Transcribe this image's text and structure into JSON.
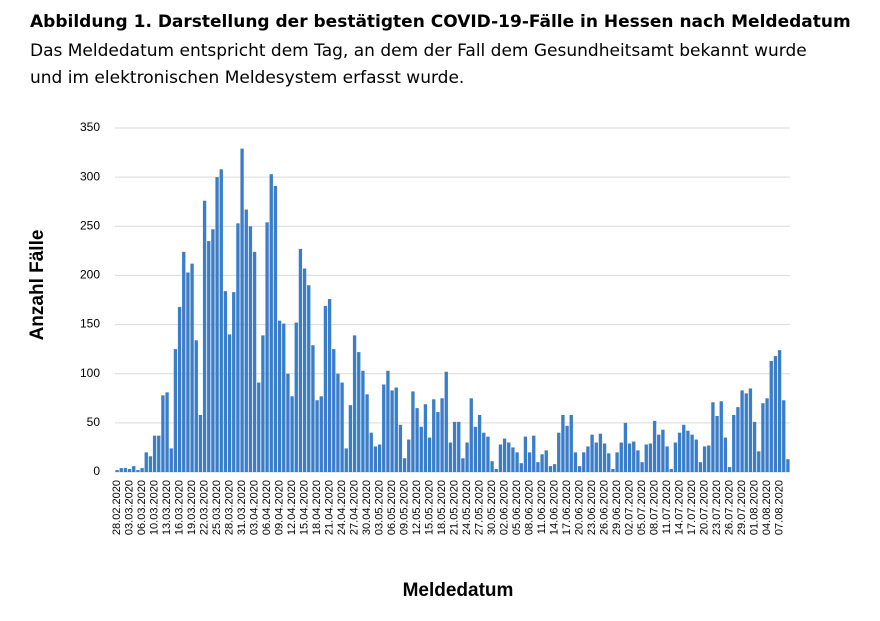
{
  "chart_data": {
    "type": "bar",
    "title": "Abbildung 1. Darstellung der bestätigten COVID-19-Fälle in Hessen nach Meldedatum",
    "subtitle": [
      "Das Meldedatum entspricht dem Tag, an dem der Fall dem Gesundheitsamt bekannt wurde",
      "und im elektronischen Meldesystem erfasst wurde."
    ],
    "y_label": "Anzahl Fälle",
    "x_label": "Meldedatum",
    "color": "#3a7dc9",
    "grid": true,
    "ylim": [
      0,
      350
    ],
    "yticks": [
      0,
      50,
      100,
      150,
      200,
      250,
      300,
      350
    ],
    "categories": [
      "28.02.2020",
      null,
      null,
      "03.03.2020",
      null,
      null,
      "06.03.2020",
      null,
      null,
      "10.03.2020",
      null,
      null,
      "13.03.2020",
      null,
      null,
      "16.03.2020",
      null,
      null,
      "19.03.2020",
      null,
      null,
      "22.03.2020",
      null,
      null,
      "25.03.2020",
      null,
      null,
      "28.03.2020",
      null,
      null,
      "31.03.2020",
      null,
      null,
      "03.04.2020",
      null,
      null,
      "06.04.2020",
      null,
      null,
      "09.04.2020",
      null,
      null,
      "12.04.2020",
      null,
      null,
      "15.04.2020",
      null,
      null,
      "18.04.2020",
      null,
      null,
      "21.04.2020",
      null,
      null,
      "24.04.2020",
      null,
      null,
      "27.04.2020",
      null,
      null,
      "30.04.2020",
      null,
      null,
      "03.05.2020",
      null,
      null,
      "06.05.2020",
      null,
      null,
      "09.05.2020",
      null,
      null,
      "12.05.2020",
      null,
      null,
      "15.05.2020",
      null,
      null,
      "18.05.2020",
      null,
      null,
      "21.05.2020",
      null,
      null,
      "24.05.2020",
      null,
      null,
      "27.05.2020",
      null,
      null,
      "30.05.2020",
      null,
      null,
      "02.06.2020",
      null,
      null,
      "05.06.2020",
      null,
      null,
      "08.06.2020",
      null,
      null,
      "11.06.2020",
      null,
      null,
      "14.06.2020",
      null,
      null,
      "17.06.2020",
      null,
      null,
      "20.06.2020",
      null,
      null,
      "23.06.2020",
      null,
      null,
      "26.06.2020",
      null,
      null,
      "29.06.2020",
      null,
      null,
      "02.07.2020",
      null,
      null,
      "05.07.2020",
      null,
      null,
      "08.07.2020",
      null,
      null,
      "11.07.2020",
      null,
      null,
      "14.07.2020",
      null,
      null,
      "17.07.2020",
      null,
      null,
      "20.07.2020",
      null,
      null,
      "23.07.2020",
      null,
      null,
      "26.07.2020",
      null,
      null,
      "29.07.2020",
      null,
      null,
      "01.08.2020",
      null,
      null,
      "04.08.2020",
      null,
      null,
      "07.08.2020",
      null,
      null
    ],
    "values": [
      2,
      4,
      4,
      3,
      6,
      2,
      4,
      20,
      16,
      37,
      37,
      78,
      81,
      24,
      125,
      168,
      224,
      203,
      212,
      134,
      58,
      276,
      235,
      247,
      300,
      308,
      184,
      140,
      183,
      253,
      329,
      267,
      250,
      224,
      91,
      139,
      254,
      303,
      291,
      154,
      151,
      100,
      77,
      152,
      227,
      207,
      190,
      129,
      73,
      77,
      169,
      176,
      125,
      100,
      91,
      24,
      68,
      139,
      122,
      103,
      79,
      40,
      26,
      28,
      89,
      103,
      83,
      86,
      48,
      14,
      33,
      82,
      65,
      46,
      69,
      35,
      74,
      61,
      75,
      102,
      30,
      51,
      51,
      14,
      30,
      75,
      46,
      58,
      40,
      36,
      11,
      3,
      28,
      34,
      30,
      25,
      20,
      9,
      36,
      20,
      37,
      10,
      18,
      22,
      6,
      8,
      40,
      58,
      47,
      58,
      20,
      6,
      20,
      26,
      38,
      30,
      39,
      29,
      19,
      3,
      20,
      30,
      50,
      29,
      31,
      22,
      10,
      28,
      29,
      52,
      38,
      43,
      26,
      3,
      30,
      40,
      48,
      42,
      38,
      33,
      10,
      26,
      27,
      71,
      57,
      72,
      35,
      5,
      58,
      66,
      83,
      80,
      85,
      51,
      21,
      70,
      75,
      113,
      118,
      124,
      73,
      13
    ]
  }
}
